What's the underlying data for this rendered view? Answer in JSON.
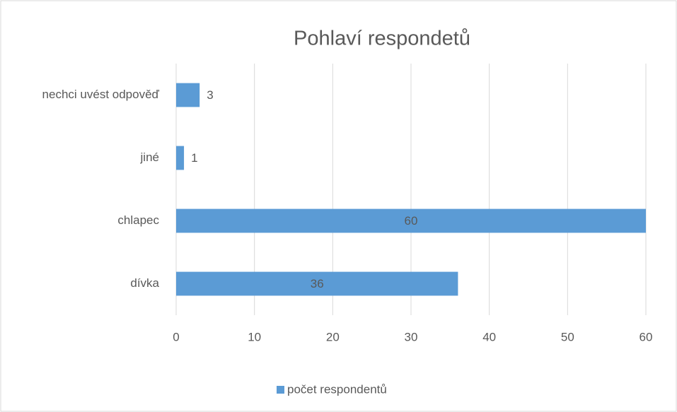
{
  "chart_data": {
    "type": "bar",
    "orientation": "horizontal",
    "title": "Pohlaví respondetů",
    "categories": [
      "dívka",
      "chlapec",
      "jiné",
      "nechci uvést odpověď"
    ],
    "series": [
      {
        "name": "počet respondentů",
        "color": "#5b9bd5",
        "values": [
          36,
          60,
          1,
          3
        ]
      }
    ],
    "xlim": [
      0,
      60
    ],
    "xticks": [
      0,
      10,
      20,
      30,
      40,
      50,
      60
    ],
    "grid": true,
    "legend": "bottom"
  }
}
